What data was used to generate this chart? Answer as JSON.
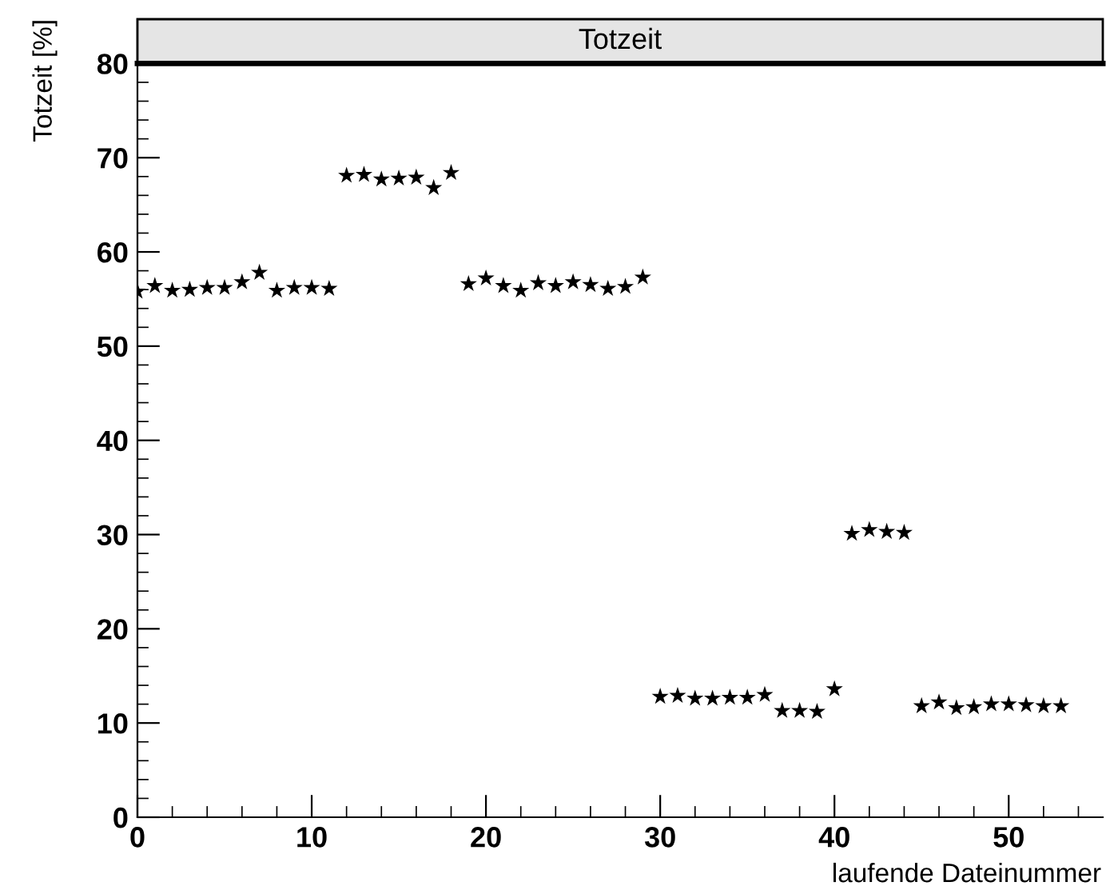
{
  "chart_data": {
    "type": "scatter",
    "title": "Totzeit",
    "xlabel": "laufende Dateinummer",
    "ylabel": "Totzeit [%]",
    "x": [
      0,
      1,
      2,
      3,
      4,
      5,
      6,
      7,
      8,
      9,
      10,
      11,
      12,
      13,
      14,
      15,
      16,
      17,
      18,
      19,
      20,
      21,
      22,
      23,
      24,
      25,
      26,
      27,
      28,
      29,
      30,
      31,
      32,
      33,
      34,
      35,
      36,
      37,
      38,
      39,
      40,
      41,
      42,
      43,
      44,
      45,
      46,
      47,
      48,
      49,
      50,
      51,
      52,
      53
    ],
    "series": [
      {
        "color": "#000000",
        "values": [
          55.8,
          56.4,
          55.9,
          56.0,
          56.2,
          56.2,
          56.8,
          57.8,
          55.9,
          56.2,
          56.2,
          56.1,
          68.1,
          68.2,
          67.7,
          67.8,
          67.9,
          66.8,
          68.4,
          56.6,
          57.2,
          56.4,
          55.9,
          56.7,
          56.4,
          56.8,
          56.5,
          56.1,
          56.3,
          57.3,
          12.8,
          12.9,
          12.6,
          12.6,
          12.7,
          12.7,
          13.0,
          11.3,
          11.3,
          11.2,
          13.6,
          30.1,
          30.5,
          30.3,
          30.2,
          11.8,
          12.2,
          11.6,
          11.7,
          12.0,
          12.0,
          11.9,
          11.8,
          11.8
        ]
      }
    ],
    "xlim": [
      0,
      55.4
    ],
    "ylim": [
      0,
      84.7
    ],
    "xticks": [
      0,
      10,
      20,
      30,
      40,
      50
    ],
    "yticks": [
      0,
      10,
      20,
      30,
      40,
      50,
      60,
      70,
      80
    ],
    "marker": "star",
    "legend": false
  }
}
